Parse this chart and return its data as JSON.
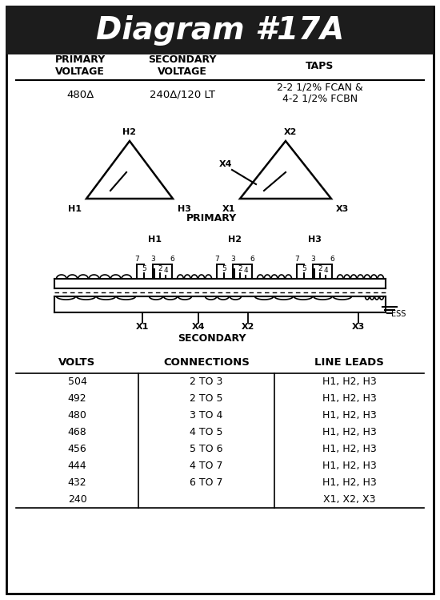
{
  "title": "Diagram #17A",
  "title_bg": "#1c1c1c",
  "title_color": "#ffffff",
  "title_fontsize": 28,
  "header_cols": [
    "PRIMARY\nVOLTAGE",
    "SECONDARY\nVOLTAGE",
    "TAPS"
  ],
  "data_cols": [
    "480Δ",
    "240Δ/120 LT",
    "2-2 1/2% FCAN &\n4-2 1/2% FCBN"
  ],
  "primary_label": "PRIMARY",
  "secondary_label": "SECONDARY",
  "tap_labels": [
    "7",
    "5",
    "3",
    "2",
    "4",
    "6"
  ],
  "ess_label": "ESS",
  "table_headers": [
    "VOLTS",
    "CONNECTIONS",
    "LINE LEADS"
  ],
  "table_volts": [
    "504",
    "492",
    "480",
    "468",
    "456",
    "444",
    "432",
    "240"
  ],
  "table_connections": [
    "2 TO 3",
    "2 TO 5",
    "3 TO 4",
    "4 TO 5",
    "5 TO 6",
    "4 TO 7",
    "6 TO 7",
    ""
  ],
  "table_lineleads": [
    "H1, H2, H3",
    "H1, H2, H3",
    "H1, H2, H3",
    "H1, H2, H3",
    "H1, H2, H3",
    "H1, H2, H3",
    "H1, H2, H3",
    "X1, X2, X3"
  ],
  "bg_color": "#ffffff",
  "border_color": "#000000"
}
